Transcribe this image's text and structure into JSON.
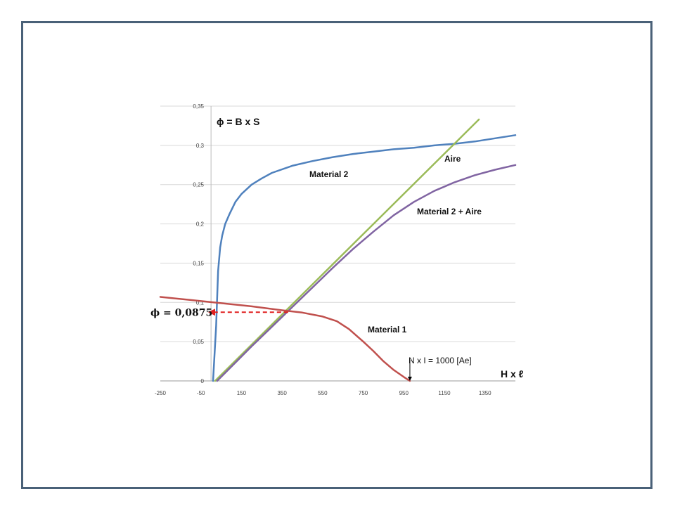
{
  "chart_data": {
    "type": "line",
    "title": "ϕ = B x S",
    "xlabel": "H x ℓ",
    "ylabel": "",
    "xlim": [
      -250,
      1500
    ],
    "ylim": [
      0,
      0.35
    ],
    "x_ticks": [
      "-250",
      "-50",
      "150",
      "350",
      "550",
      "750",
      "950",
      "1150",
      "1350"
    ],
    "y_ticks": [
      "0",
      "0,05",
      "0,1",
      "0,15",
      "0,2",
      "0,25",
      "0,3",
      "0,35"
    ],
    "grid": true,
    "series": [
      {
        "name": "Material 2",
        "color": "#4f81bd",
        "x": [
          10,
          25,
          35,
          45,
          55,
          70,
          90,
          120,
          150,
          200,
          250,
          300,
          400,
          500,
          600,
          700,
          800,
          900,
          1000,
          1100,
          1200,
          1300,
          1400,
          1500
        ],
        "y": [
          0,
          0.07,
          0.14,
          0.17,
          0.185,
          0.2,
          0.212,
          0.228,
          0.238,
          0.25,
          0.258,
          0.265,
          0.274,
          0.28,
          0.285,
          0.289,
          0.292,
          0.295,
          0.297,
          0.3,
          0.302,
          0.305,
          0.309,
          0.313
        ]
      },
      {
        "name": "Aire",
        "color": "#9bbb59",
        "x": [
          20,
          1320
        ],
        "y": [
          0,
          0.333
        ]
      },
      {
        "name": "Material 2 + Aire",
        "color": "#8064a2",
        "x": [
          30,
          200,
          400,
          600,
          700,
          800,
          900,
          1000,
          1100,
          1200,
          1300,
          1400,
          1500
        ],
        "y": [
          0,
          0.044,
          0.094,
          0.144,
          0.168,
          0.19,
          0.211,
          0.228,
          0.242,
          0.253,
          0.262,
          0.269,
          0.275
        ]
      },
      {
        "name": "Material 1",
        "color": "#c0504d",
        "x": [
          -250,
          -100,
          50,
          200,
          350,
          450,
          550,
          620,
          680,
          750,
          800,
          850,
          900,
          950,
          980
        ],
        "y": [
          0.107,
          0.103,
          0.099,
          0.095,
          0.09,
          0.087,
          0.082,
          0.076,
          0.066,
          0.05,
          0.038,
          0.025,
          0.014,
          0.005,
          0
        ]
      }
    ],
    "annotations": {
      "phi_value": "ϕ = 0,0875",
      "phi_y": 0.0875,
      "intersection_x": 380,
      "operating_point": "N x I = 1000 [Ae]",
      "operating_x": 980
    }
  }
}
